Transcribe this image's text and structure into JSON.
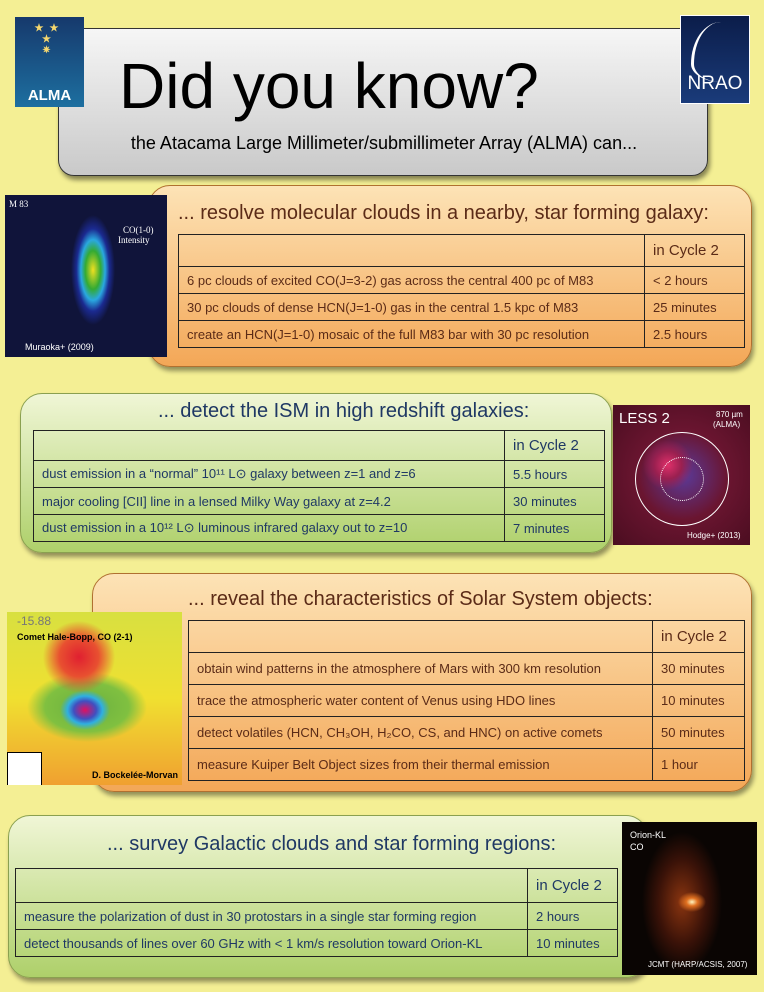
{
  "header": {
    "title": "Did you know?",
    "subtitle": "the Atacama Large Millimeter/submillimeter Array (ALMA) can...",
    "logo_left": "ALMA",
    "logo_right": "NRAO"
  },
  "colors": {
    "background": "#f4ef94",
    "orange_panel": "#f3a757",
    "green_panel": "#aed06a",
    "brown_text": "#5b2b17",
    "navy_text": "#1f3864"
  },
  "sections": [
    {
      "heading": "... resolve molecular clouds in a nearby, star forming galaxy:",
      "col_header": "in Cycle 2",
      "rows": [
        [
          "6 pc clouds of excited CO(J=3-2) gas across the central 400 pc of M83",
          "< 2 hours"
        ],
        [
          "30 pc clouds of dense HCN(J=1-0) gas in the central 1.5 kpc of M83",
          "25 minutes"
        ],
        [
          "create an HCN(J=1-0) mosaic of the full M83 bar with 30 pc resolution",
          "2.5 hours"
        ]
      ],
      "image": {
        "label": "M 83",
        "line": "CO(1-0)",
        "line2": "Intensity",
        "credit": "Muraoka+ (2009)"
      }
    },
    {
      "heading": "... detect the ISM in high redshift galaxies:",
      "col_header": "in Cycle 2",
      "rows": [
        [
          "dust emission in a “normal” 10¹¹ L⊙ galaxy between z=1 and z=6",
          "5.5 hours"
        ],
        [
          "major cooling [CII] line in a lensed Milky Way galaxy at z=4.2",
          "30 minutes"
        ],
        [
          "dust emission in a 10¹² L⊙ luminous infrared galaxy out to z=10",
          "7 minutes"
        ]
      ],
      "image": {
        "label": "LESS 2",
        "line": "870 µm",
        "line2": "(ALMA)",
        "credit": "Hodge+ (2013)"
      }
    },
    {
      "heading": "... reveal the characteristics of Solar System objects:",
      "col_header": "in Cycle 2",
      "rows": [
        [
          "obtain wind patterns in the atmosphere of Mars with 300 km resolution",
          "30 minutes"
        ],
        [
          "trace the atmospheric water content of Venus using HDO lines",
          "10 minutes"
        ],
        [
          "detect volatiles (HCN, CH₃OH, H₂CO, CS, and HNC) on active comets",
          "50 minutes"
        ],
        [
          "measure Kuiper Belt Object sizes from their thermal emission",
          "1 hour"
        ]
      ],
      "image": {
        "label": "-15.88",
        "line": "Comet Hale-Bopp, CO (2-1)",
        "credit": "D. Bockelée-Morvan"
      }
    },
    {
      "heading": "... survey Galactic clouds and star forming regions:",
      "col_header": "in Cycle 2",
      "rows": [
        [
          "measure the polarization of dust in 30 protostars in a single star forming region",
          "2 hours"
        ],
        [
          "detect thousands of lines over 60 GHz with < 1 km/s resolution toward Orion-KL",
          "10 minutes"
        ]
      ],
      "image": {
        "label": "Orion-KL",
        "line": "CO",
        "credit": "JCMT (HARP/ACSIS, 2007)"
      }
    }
  ]
}
